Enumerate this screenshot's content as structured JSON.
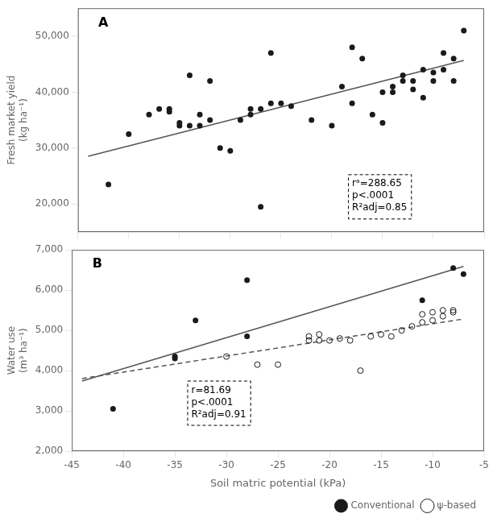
{
  "chart_data": [
    {
      "type": "scatter",
      "ylabel": "Fresh market yield\n(kg ha⁻¹)",
      "xlim": [
        -45,
        -5
      ],
      "xticks": [
        -45,
        -40,
        -35,
        -30,
        -25,
        -20,
        -15,
        -10,
        -5
      ],
      "ylim": [
        15000,
        55000
      ],
      "yticks": [
        {
          "value": 20000,
          "label": "20,000"
        },
        {
          "value": 30000,
          "label": "30,000"
        },
        {
          "value": 40000,
          "label": "40,000"
        },
        {
          "value": 50000,
          "label": "50,000"
        }
      ],
      "tick_labels": "y",
      "grid": false,
      "annotations": [
        "A",
        "rᵃ=288.65\np<.0001\nR²adj=0.85"
      ],
      "series": [
        {
          "type": "scatter",
          "color": "#1a1a1a",
          "marker": "circle",
          "x": [
            -42,
            -40,
            -38,
            -37,
            -36,
            -36,
            -35,
            -35,
            -34,
            -34,
            -33,
            -33,
            -32,
            -32,
            -31,
            -30,
            -29,
            -28,
            -28,
            -27,
            -27,
            -26,
            -26,
            -25,
            -24,
            -22,
            -20,
            -19,
            -18,
            -18,
            -17,
            -16,
            -15,
            -15,
            -14,
            -14,
            -13,
            -13,
            -12,
            -12,
            -11,
            -11,
            -10,
            -10,
            -9,
            -9,
            -8,
            -8,
            -7
          ],
          "values": [
            23500,
            32500,
            36000,
            37000,
            36500,
            37000,
            34000,
            34500,
            43000,
            34000,
            34000,
            36000,
            35000,
            42000,
            30000,
            29500,
            35000,
            36000,
            37000,
            19500,
            37000,
            47000,
            38000,
            38000,
            37500,
            35000,
            34000,
            41000,
            38000,
            48000,
            46000,
            36000,
            40000,
            34500,
            41000,
            40000,
            43000,
            42000,
            40500,
            42000,
            44000,
            39000,
            42000,
            43500,
            44000,
            47000,
            42000,
            46000,
            51000
          ]
        },
        {
          "type": "line",
          "color": "#555555",
          "line_style": "solid",
          "x": [
            -44,
            -7
          ],
          "values": [
            28548.35,
            45679.35
          ]
        }
      ]
    },
    {
      "type": "scatter",
      "xlabel": "Soil matric potential (kPa)",
      "ylabel": "Water use\n(m³ ha⁻¹)",
      "xlim": [
        -45,
        -5
      ],
      "xticks": [
        -45,
        -40,
        -35,
        -30,
        -25,
        -20,
        -15,
        -10,
        -5
      ],
      "ylim": [
        2000,
        7000
      ],
      "yticks": [
        {
          "value": 2000,
          "label": "2,000"
        },
        {
          "value": 3000,
          "label": "3,000"
        },
        {
          "value": 4000,
          "label": "4,000"
        },
        {
          "value": 5000,
          "label": "5,000"
        },
        {
          "value": 6000,
          "label": "6,000"
        },
        {
          "value": 7000,
          "label": "7,000"
        }
      ],
      "grid": false,
      "legend": "lower right",
      "annotations": [
        "B",
        "r=81.69\np<.0001\nR²adj=0.91"
      ],
      "series": [
        {
          "name": "Conventional",
          "type": "scatter",
          "color": "#1a1a1a",
          "marker": "circle",
          "x": [
            -41,
            -35,
            -35,
            -33,
            -28,
            -28,
            -11,
            -8,
            -7
          ],
          "values": [
            3050,
            4350,
            4300,
            5250,
            4850,
            6250,
            5750,
            6550,
            6400
          ]
        },
        {
          "name": "ψ-based",
          "type": "scatter",
          "color": "#1a1a1a",
          "marker": "open_circle",
          "x": [
            -30,
            -27,
            -25,
            -22,
            -22,
            -21,
            -21,
            -20,
            -19,
            -18,
            -17,
            -16,
            -15,
            -14,
            -13,
            -12,
            -11,
            -11,
            -10,
            -10,
            -9,
            -9,
            -8,
            -8
          ],
          "values": [
            4350,
            4150,
            4150,
            4750,
            4850,
            4750,
            4900,
            4750,
            4800,
            4750,
            4000,
            4850,
            4900,
            4850,
            5000,
            5100,
            5200,
            5400,
            5250,
            5450,
            5350,
            5500,
            5450,
            5500
          ]
        },
        {
          "type": "line",
          "color": "#555555",
          "line_style": "solid",
          "x": [
            -44,
            -7
          ],
          "values": [
            3740,
            6589
          ]
        },
        {
          "type": "line",
          "color": "#555555",
          "line_style": "dashed",
          "x": [
            -44,
            -7
          ],
          "values": [
            3803.33,
            5283.33
          ]
        }
      ]
    }
  ]
}
